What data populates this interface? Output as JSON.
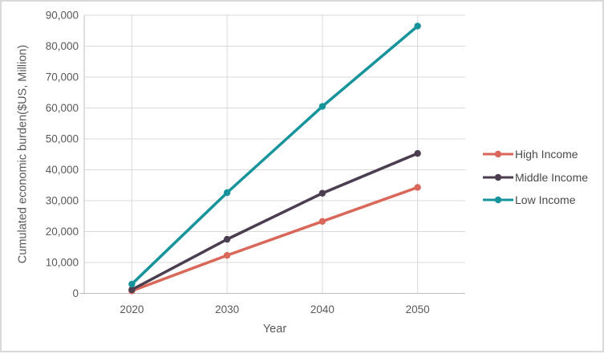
{
  "chart_data": {
    "type": "line",
    "title": "",
    "xlabel": "Year",
    "ylabel": "Cumulated economic burden($US, Million)",
    "categories": [
      "2020",
      "2030",
      "2040",
      "2050"
    ],
    "series": [
      {
        "name": "High Income",
        "color": "#D9675A",
        "values": [
          800,
          12300,
          23300,
          34300
        ]
      },
      {
        "name": "Middle Income",
        "color": "#4B3E50",
        "values": [
          1200,
          17500,
          32400,
          45300
        ]
      },
      {
        "name": "Low Income",
        "color": "#16939B",
        "values": [
          3000,
          32600,
          60500,
          86500
        ]
      }
    ],
    "ylim": [
      0,
      90000
    ],
    "ytick_step": 10000,
    "ytick_labels": [
      "0",
      "10,000",
      "20,000",
      "30,000",
      "40,000",
      "50,000",
      "60,000",
      "70,000",
      "80,000",
      "90,000"
    ],
    "grid": "horizontal and vertical gridlines on",
    "legend_position": "right",
    "marker": "circle"
  },
  "colors": {
    "background": "#FFFFFF",
    "frame_border": "#D9D9D9",
    "gridline": "#D9D9D9",
    "axis_line": "#BFBFBF",
    "tick_text": "#595959",
    "title_text": "#595959",
    "legend_text": "#4a4a4a"
  }
}
